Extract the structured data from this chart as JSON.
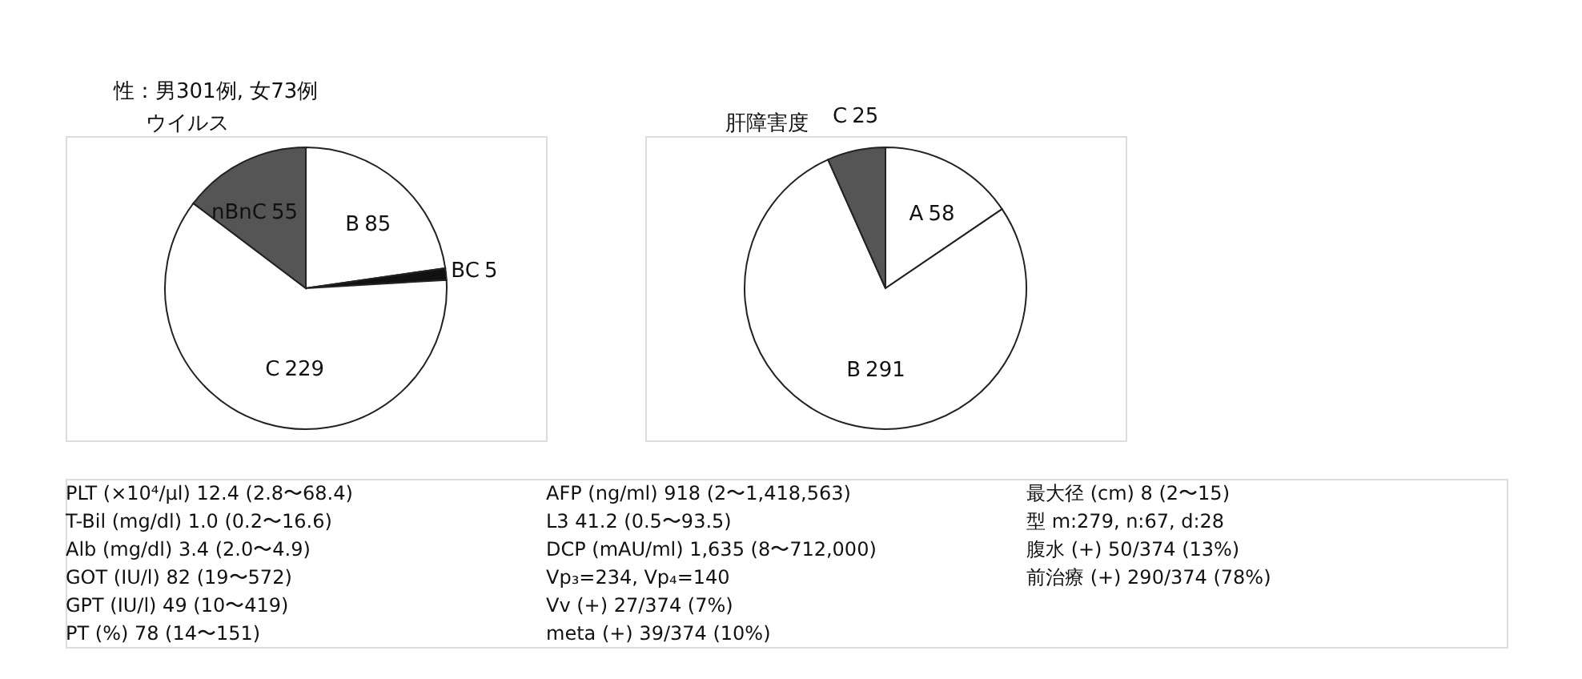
{
  "chart_data": [
    {
      "type": "pie",
      "title": "ウイルス",
      "annotations": [
        "性：男301例, 女73例"
      ],
      "categories": [
        "B",
        "BC",
        "C",
        "nBnC"
      ],
      "values": [
        85,
        5,
        229,
        55
      ],
      "colors": [
        "#ffffff",
        "#111111",
        "#ffffff",
        "#555555"
      ],
      "data_labels": true
    },
    {
      "type": "pie",
      "title": "肝障害度",
      "categories": [
        "A",
        "B",
        "C"
      ],
      "values": [
        58,
        291,
        25
      ],
      "colors": [
        "#ffffff",
        "#ffffff",
        "#555555"
      ],
      "data_labels": true
    },
    {
      "type": "other",
      "annotations": [
        "PLT (×10⁴/μl)  12.4 (2.8〜68.4)",
        "T-Bil (mg/dl)  1.0 (0.2〜16.6)",
        "Alb (mg/dl)  3.4 (2.0〜4.9)",
        "GOT (IU/l)  82 (19〜572)",
        "GPT (IU/l)  49 (10〜419)",
        "PT (%)  78 (14〜151)",
        "AFP (ng/ml)  918 (2〜1,418,563)",
        "L3  41.2 (0.5〜93.5)",
        "DCP (mAU/ml)  1,635 (8〜712,000)",
        "Vp₃=234,  Vp₄=140",
        "Vv (+)  27/374 (7%)",
        "meta (+)  39/374 (10%)",
        "最大径 (cm)  8 (2〜15)",
        "型  m:279, n:67, d:28",
        "腹水 (+)  50/374 (13%)",
        "前治療 (+)  290/374 (78%)"
      ]
    }
  ]
}
